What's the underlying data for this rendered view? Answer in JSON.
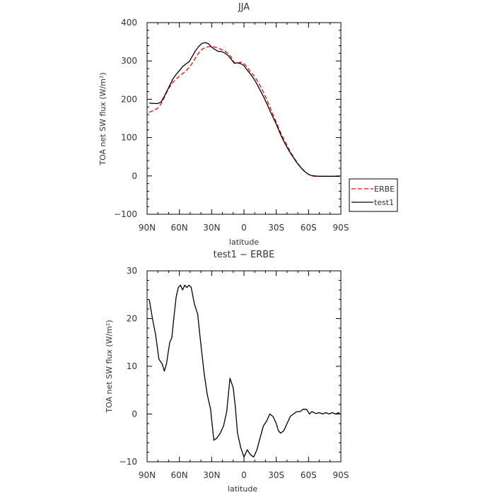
{
  "chart_data": [
    {
      "type": "line",
      "title": "JJA",
      "xlabel": "latitude",
      "ylabel": "TOA net SW flux (W/m²)",
      "xticks": [
        "90N",
        "60N",
        "30N",
        "0",
        "30S",
        "60S",
        "90S"
      ],
      "xlim": [
        90,
        -90
      ],
      "ylim": [
        -100,
        400
      ],
      "yticks": [
        "−100",
        "0",
        "100",
        "200",
        "300",
        "400"
      ],
      "legend": "outside-right",
      "grid": false,
      "series": [
        {
          "name": "ERBE",
          "color": "#ff0000",
          "dash": "dashed",
          "x": [
            88,
            83,
            80,
            77,
            74,
            70,
            66,
            63,
            60,
            57,
            54,
            51,
            48,
            45,
            42,
            39,
            36,
            33,
            30,
            27,
            24,
            21,
            18,
            15,
            12,
            9,
            6,
            3,
            0,
            -3,
            -6,
            -9,
            -12,
            -15,
            -18,
            -21,
            -24,
            -27,
            -30,
            -33,
            -36,
            -39,
            -42,
            -45,
            -48,
            -51,
            -54,
            -57,
            -60,
            -63,
            -66,
            -70,
            -74,
            -78,
            -82,
            -86,
            -89
          ],
          "y": [
            166,
            172,
            177,
            188,
            205,
            228,
            244,
            253,
            260,
            267,
            273,
            283,
            294,
            308,
            321,
            330,
            335,
            337,
            338,
            336,
            334,
            330,
            327,
            320,
            311,
            295,
            294,
            297,
            293,
            284,
            272,
            263,
            250,
            236,
            219,
            201,
            181,
            160,
            140,
            120,
            102,
            85,
            69,
            54,
            41,
            29,
            19,
            10,
            4,
            0,
            -1,
            -1,
            -1,
            -1,
            -1,
            -1,
            -1
          ]
        },
        {
          "name": "test1",
          "color": "#000000",
          "dash": "solid",
          "x": [
            88,
            83,
            80,
            77,
            74,
            70,
            66,
            63,
            60,
            57,
            54,
            51,
            48,
            45,
            42,
            39,
            36,
            33,
            30,
            27,
            24,
            21,
            18,
            15,
            12,
            9,
            6,
            3,
            0,
            -3,
            -6,
            -9,
            -12,
            -15,
            -18,
            -21,
            -24,
            -27,
            -30,
            -33,
            -36,
            -39,
            -42,
            -45,
            -48,
            -51,
            -54,
            -57,
            -60,
            -63,
            -66,
            -70,
            -74,
            -78,
            -82,
            -86,
            -89
          ],
          "y": [
            190,
            189,
            189,
            193,
            208,
            230,
            253,
            265,
            275,
            285,
            292,
            298,
            312,
            327,
            338,
            346,
            348,
            345,
            336,
            330,
            325,
            325,
            321,
            315,
            305,
            294,
            295,
            293,
            288,
            276,
            266,
            254,
            240,
            224,
            208,
            190,
            171,
            153,
            135,
            115,
            96,
            80,
            65,
            52,
            39,
            28,
            18,
            10,
            4,
            1,
            0,
            -1,
            -1,
            -1,
            -1,
            -1,
            -1
          ]
        }
      ]
    },
    {
      "type": "line",
      "title": "test1 − ERBE",
      "xlabel": "latitude",
      "ylabel": "TOA net SW flux (W/m²)",
      "xticks": [
        "90N",
        "60N",
        "30N",
        "0",
        "30S",
        "60S",
        "90S"
      ],
      "xlim": [
        90,
        -90
      ],
      "ylim": [
        -10,
        30
      ],
      "yticks": [
        "−10",
        "0",
        "10",
        "20",
        "30"
      ],
      "grid": false,
      "series": [
        {
          "color": "#000000",
          "dash": "solid",
          "x": [
            88,
            85,
            82,
            79,
            76,
            74,
            72,
            69,
            67,
            65,
            63,
            61,
            59,
            57,
            55,
            53,
            51,
            49,
            46,
            43,
            40,
            37,
            34,
            31,
            28,
            25,
            22,
            19,
            16,
            13,
            10,
            8,
            6,
            3,
            0,
            -3,
            -6,
            -9,
            -12,
            -15,
            -18,
            -21,
            -24,
            -27,
            -30,
            -32,
            -34,
            -37,
            -40,
            -43,
            -46,
            -49,
            -52,
            -55,
            -58,
            -61,
            -63,
            -65,
            -67,
            -70,
            -73,
            -76,
            -79,
            -82,
            -85,
            -88,
            -89
          ],
          "y": [
            24,
            20,
            16.5,
            11.5,
            10.5,
            9,
            10.5,
            15,
            16,
            20.5,
            24.5,
            26.5,
            27,
            26,
            27,
            26.5,
            27,
            26.5,
            23,
            21,
            14.5,
            8.5,
            4,
            1,
            -5.5,
            -5,
            -4,
            -2.5,
            0.5,
            7.5,
            5.5,
            1.5,
            -4,
            -7,
            -9,
            -7.5,
            -8.5,
            -9,
            -7.5,
            -5,
            -2.5,
            -1.5,
            0,
            -0.5,
            -2,
            -3.5,
            -4,
            -3.5,
            -2,
            -0.5,
            0,
            0.5,
            0.5,
            1,
            1,
            0,
            0.5,
            0.3,
            0.1,
            0.3,
            0,
            0.3,
            0,
            0.3,
            0,
            0.3,
            0
          ]
        }
      ]
    }
  ]
}
